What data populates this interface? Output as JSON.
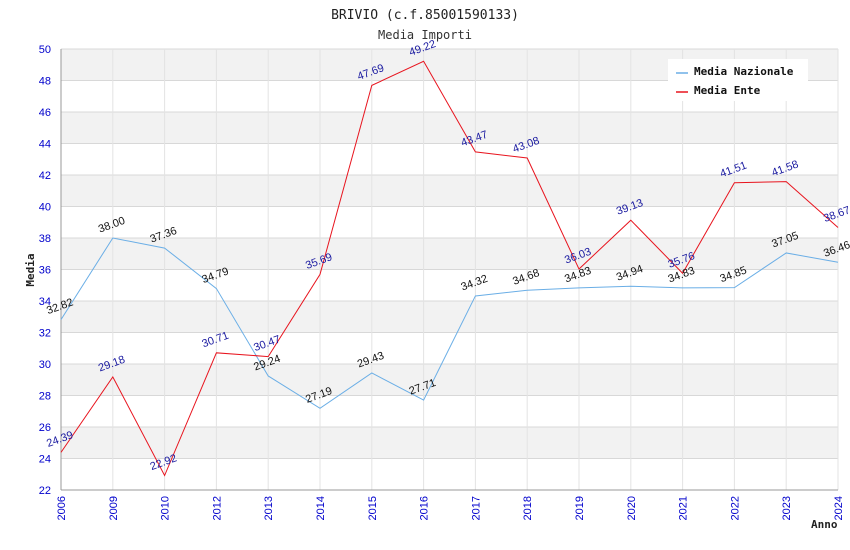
{
  "chart_data": {
    "type": "line",
    "title": "BRIVIO (c.f.85001590133)",
    "subtitle": "Media Importi",
    "xlabel": "Anno",
    "ylabel": "Media",
    "ylim": [
      22,
      50
    ],
    "y_ticks": [
      "22",
      "24",
      "26",
      "28",
      "30",
      "32",
      "34",
      "36",
      "38",
      "40",
      "42",
      "44",
      "46",
      "48",
      "50"
    ],
    "categories": [
      "2006",
      "2009",
      "2010",
      "2012",
      "2013",
      "2014",
      "2015",
      "2016",
      "2017",
      "2018",
      "2019",
      "2020",
      "2021",
      "2022",
      "2023",
      "2024"
    ],
    "series": [
      {
        "name": "Media Nazionale",
        "color": "#6aaee6",
        "values": [
          32.82,
          38.0,
          37.36,
          34.79,
          29.24,
          27.19,
          29.43,
          27.71,
          34.32,
          34.68,
          34.83,
          34.94,
          34.83,
          34.85,
          37.05,
          36.46
        ],
        "labels": [
          "32.82",
          "38.00",
          "37.36",
          "34.79",
          "29.24",
          "27.19",
          "29.43",
          "27.71",
          "34.32",
          "34.68",
          "34.83",
          "34.94",
          "34.83",
          "34.85",
          "37.05",
          "36.46"
        ]
      },
      {
        "name": "Media Ente",
        "color": "#e8141e",
        "values": [
          24.39,
          29.18,
          22.92,
          30.71,
          30.47,
          35.69,
          47.69,
          49.22,
          43.47,
          43.08,
          36.03,
          39.13,
          35.76,
          41.51,
          41.58,
          38.67
        ],
        "labels": [
          "24.39",
          "29.18",
          "22.92",
          "30.71",
          "30.47",
          "35.69",
          "47.69",
          "49.22",
          "43.47",
          "43.08",
          "36.03",
          "39.13",
          "35.76",
          "41.51",
          "41.58",
          "38.67"
        ]
      }
    ],
    "grid": true,
    "legend_position": "top-right",
    "band_colors": [
      "#f2f2f2",
      "#ffffff"
    ]
  }
}
